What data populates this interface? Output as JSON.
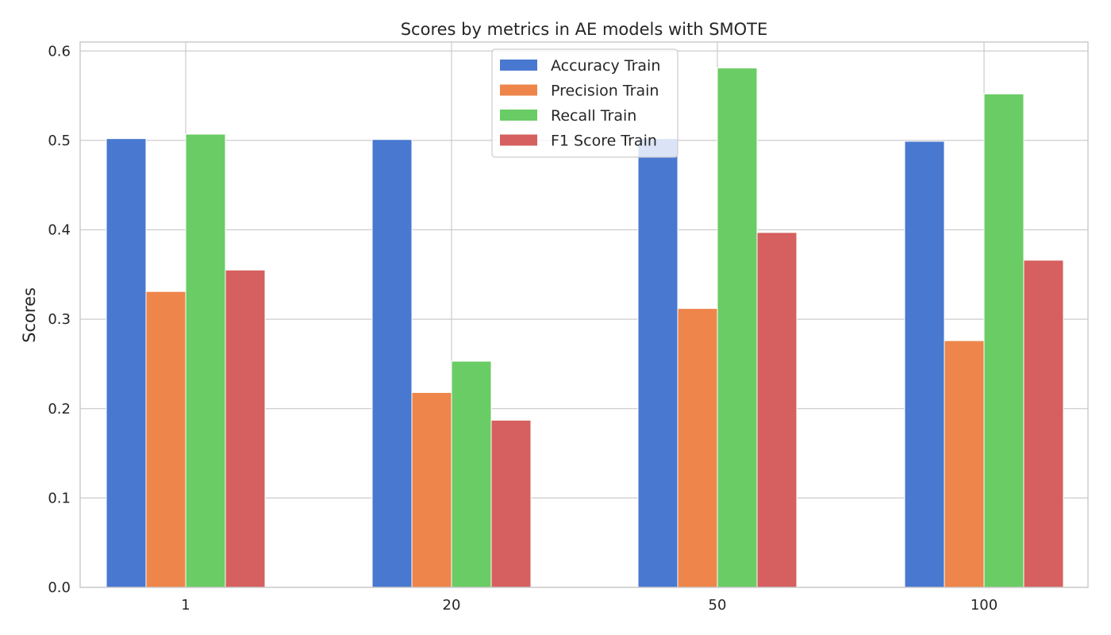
{
  "chart_data": {
    "type": "bar",
    "title": "Scores by metrics in AE models with SMOTE",
    "xlabel": "",
    "ylabel": "Scores",
    "categories": [
      "1",
      "20",
      "50",
      "100"
    ],
    "ylim": [
      0,
      0.61
    ],
    "yticks": [
      0.0,
      0.1,
      0.2,
      0.3,
      0.4,
      0.5,
      0.6
    ],
    "ytick_labels": [
      "0.0",
      "0.1",
      "0.2",
      "0.3",
      "0.4",
      "0.5",
      "0.6"
    ],
    "grid": true,
    "legend_position": "top-center",
    "series": [
      {
        "name": "Accuracy Train",
        "color": "#4878d0",
        "values": [
          0.502,
          0.501,
          0.502,
          0.499
        ]
      },
      {
        "name": "Precision Train",
        "color": "#ee854a",
        "values": [
          0.331,
          0.218,
          0.312,
          0.276
        ]
      },
      {
        "name": "Recall Train",
        "color": "#6acc64",
        "values": [
          0.507,
          0.253,
          0.581,
          0.552
        ]
      },
      {
        "name": "F1 Score Train",
        "color": "#d65f5f",
        "values": [
          0.355,
          0.187,
          0.397,
          0.366
        ]
      }
    ]
  }
}
